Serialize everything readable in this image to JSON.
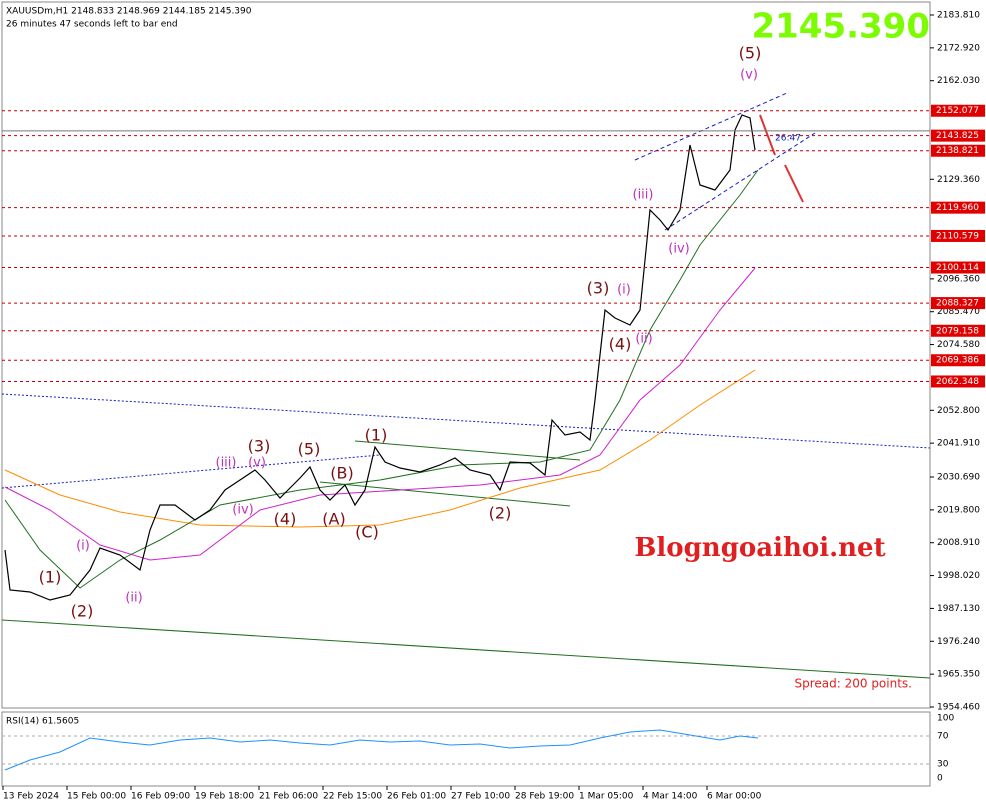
{
  "header": {
    "symbol_line": "XAUUSDm,H1  2148.833 2148.969 2144.185 2145.390",
    "timer_line": "26 minutes 47 seconds left to bar end"
  },
  "current_price": "2145.390",
  "countdown": "26:47",
  "price_axis": [
    "2183.810",
    "2172.920",
    "2162.030",
    "2129.360",
    "2096.360",
    "2085.470",
    "2074.580",
    "2052.800",
    "2041.910",
    "2030.690",
    "2019.800",
    "2008.910",
    "1998.020",
    "1987.130",
    "1976.240",
    "1965.350",
    "1954.460"
  ],
  "levels": [
    "2152.077",
    "2143.825",
    "2138.821",
    "2119.960",
    "2110.579",
    "2100.114",
    "2088.327",
    "2079.158",
    "2069.386",
    "2062.348"
  ],
  "waves": [
    {
      "label": "(1)",
      "color": "#7a1010"
    },
    {
      "label": "(2)",
      "color": "#7a1010"
    },
    {
      "label": "(3)",
      "color": "#7a1010"
    },
    {
      "label": "(4)",
      "color": "#7a1010"
    },
    {
      "label": "(5)",
      "color": "#7a1010"
    },
    {
      "label": "(A)",
      "color": "#7a1010"
    },
    {
      "label": "(B)",
      "color": "#7a1010"
    },
    {
      "label": "(C)",
      "color": "#7a1010"
    },
    {
      "label": "(1)",
      "color": "#7a1010"
    },
    {
      "label": "(2)",
      "color": "#7a1010"
    },
    {
      "label": "(3)",
      "color": "#7a1010"
    },
    {
      "label": "(4)",
      "color": "#7a1010"
    },
    {
      "label": "(5)",
      "color": "#7a1010"
    },
    {
      "label": "(i)",
      "color": "#c030c0"
    },
    {
      "label": "(ii)",
      "color": "#c030c0"
    },
    {
      "label": "(iii)",
      "color": "#c030c0"
    },
    {
      "label": "(iv)",
      "color": "#c030c0"
    },
    {
      "label": "(v)",
      "color": "#c030c0"
    },
    {
      "label": "(i)",
      "color": "#c030c0"
    },
    {
      "label": "(ii)",
      "color": "#c030c0"
    },
    {
      "label": "(iii)",
      "color": "#c030c0"
    },
    {
      "label": "(iv)",
      "color": "#c030c0"
    },
    {
      "label": "(v)",
      "color": "#c030c0"
    }
  ],
  "watermark": "Blogngoaihoi.net",
  "spread": "Spread: 200 points.",
  "rsi": {
    "title": "RSI(14) 61.5605",
    "scale": [
      "100",
      "70",
      "30",
      "0"
    ]
  },
  "time_axis": [
    "13 Feb 2024",
    "15 Feb 00:00",
    "16 Feb 09:00",
    "19 Feb 18:00",
    "21 Feb 06:00",
    "22 Feb 15:00",
    "26 Feb 01:00",
    "27 Feb 10:00",
    "28 Feb 19:00",
    "1 Mar 05:00",
    "4 Mar 14:00",
    "6 Mar 00:00"
  ]
}
